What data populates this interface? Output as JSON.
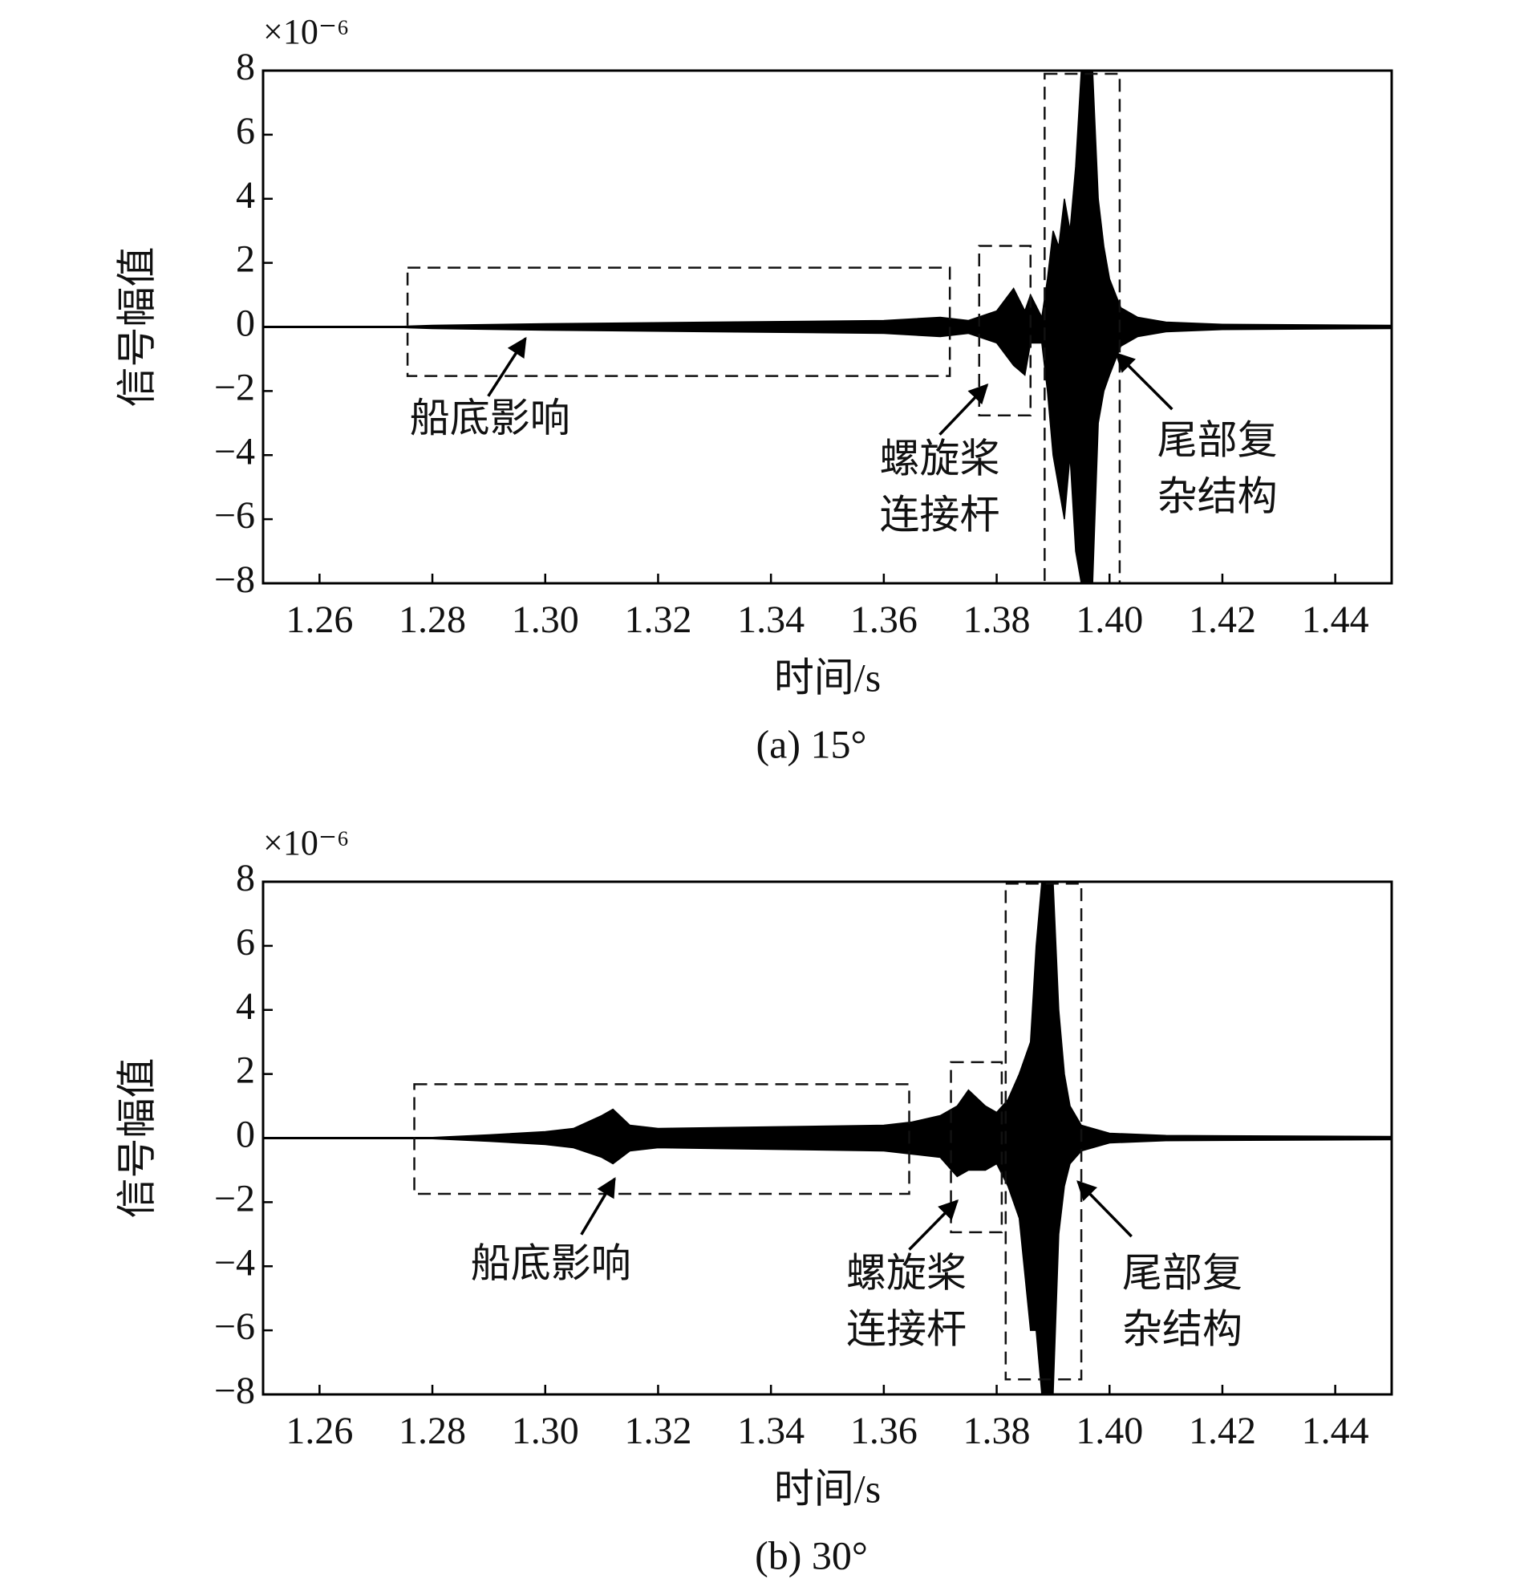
{
  "chart_data": [
    {
      "type": "area",
      "caption": "(a) 15°",
      "x_label": "时间/s",
      "y_label": "信号幅值",
      "y_multiplier": "×10⁻⁶",
      "xlim": [
        1.25,
        1.45
      ],
      "ylim": [
        -8,
        8
      ],
      "xticks": [
        1.26,
        1.28,
        {
          "value": 1.3,
          "label": "1.30"
        },
        1.32,
        1.34,
        1.36,
        1.38,
        {
          "value": 1.4,
          "label": "1.40"
        },
        1.42,
        1.44
      ],
      "yticks": [
        {
          "value": -8,
          "label": "−8"
        },
        {
          "value": -6,
          "label": "−6"
        },
        {
          "value": -4,
          "label": "−4"
        },
        {
          "value": -2,
          "label": "−2"
        },
        0,
        2,
        4,
        6,
        8
      ],
      "x": [
        1.25,
        1.275,
        1.28,
        1.3,
        1.33,
        1.36,
        1.37,
        1.375,
        1.38,
        1.383,
        1.385,
        1.386,
        1.388,
        1.389,
        1.39,
        1.391,
        1.392,
        1.393,
        1.394,
        1.395,
        1.397,
        1.398,
        1.399,
        1.4,
        1.402,
        1.405,
        1.41,
        1.42,
        1.45
      ],
      "series": [
        {
          "color": "#000000",
          "values": [
            0.02,
            0.02,
            0.05,
            0.1,
            0.15,
            0.2,
            0.3,
            0.2,
            0.5,
            1.2,
            0.5,
            1.0,
            0.3,
            1.5,
            3,
            2.5,
            4,
            3,
            5,
            8,
            8,
            4,
            2.5,
            1.5,
            0.6,
            0.3,
            0.15,
            0.08,
            0.05
          ]
        },
        {
          "color": "#000000",
          "values": [
            -0.02,
            -0.02,
            -0.05,
            -0.1,
            -0.15,
            -0.2,
            -0.3,
            -0.2,
            -0.5,
            -1.2,
            -1.5,
            -0.5,
            -0.5,
            -2,
            -4,
            -5,
            -6,
            -4,
            -7,
            -8,
            -8,
            -3,
            -2,
            -1.5,
            -0.6,
            -0.3,
            -0.15,
            -0.08,
            -0.05
          ]
        }
      ],
      "annotations": [
        {
          "text": [
            "船底影响"
          ],
          "box": [
            1.2756,
            1.3717,
            -1.53,
            1.85
          ],
          "arrow": [
            1.2899,
            -2.16,
            1.2965,
            -0.36
          ],
          "at": [
            1.2902,
            -2.98
          ]
        },
        {
          "text": [
            "螺旋桨",
            "连接杆"
          ],
          "box": [
            1.3769,
            1.386,
            -2.76,
            2.53
          ],
          "arrow": [
            1.3699,
            -3.36,
            1.3783,
            -1.81
          ],
          "at": [
            1.3699,
            -4.24
          ]
        },
        {
          "text": [
            "尾部复",
            "杂结构"
          ],
          "box": [
            1.3885,
            1.4018,
            -8,
            7.9
          ],
          "arrow": [
            1.4111,
            -2.57,
            1.4012,
            -0.83
          ],
          "at": [
            1.4191,
            -3.67
          ]
        }
      ]
    },
    {
      "type": "area",
      "caption": "(b) 30°",
      "x_label": "时间/s",
      "y_label": "信号幅值",
      "y_multiplier": "×10⁻⁶",
      "xlim": [
        1.25,
        1.45
      ],
      "ylim": [
        -8,
        8
      ],
      "xticks": [
        1.26,
        1.28,
        {
          "value": 1.3,
          "label": "1.30"
        },
        1.32,
        1.34,
        1.36,
        1.38,
        {
          "value": 1.4,
          "label": "1.40"
        },
        1.42,
        1.44
      ],
      "yticks": [
        {
          "value": -8,
          "label": "−8"
        },
        {
          "value": -6,
          "label": "−6"
        },
        {
          "value": -4,
          "label": "−4"
        },
        {
          "value": -2,
          "label": "−2"
        },
        0,
        2,
        4,
        6,
        8
      ],
      "x": [
        1.25,
        1.28,
        1.29,
        1.3,
        1.305,
        1.31,
        1.312,
        1.315,
        1.32,
        1.34,
        1.36,
        1.365,
        1.37,
        1.373,
        1.375,
        1.378,
        1.38,
        1.382,
        1.384,
        1.386,
        1.387,
        1.388,
        1.39,
        1.391,
        1.392,
        1.393,
        1.395,
        1.4,
        1.41,
        1.45
      ],
      "series": [
        {
          "color": "#000000",
          "values": [
            0.02,
            0.02,
            0.1,
            0.2,
            0.3,
            0.7,
            0.9,
            0.4,
            0.3,
            0.35,
            0.4,
            0.5,
            0.7,
            1.0,
            1.5,
            1.0,
            0.8,
            1.2,
            2,
            3,
            6,
            8,
            8,
            4,
            2,
            1,
            0.4,
            0.15,
            0.08,
            0.05
          ]
        },
        {
          "color": "#000000",
          "values": [
            -0.02,
            -0.02,
            -0.1,
            -0.2,
            -0.3,
            -0.6,
            -0.8,
            -0.4,
            -0.3,
            -0.35,
            -0.4,
            -0.5,
            -0.6,
            -1.2,
            -1,
            -1.0,
            -0.8,
            -1.5,
            -2.5,
            -6,
            -6,
            -8,
            -8,
            -3,
            -1.5,
            -0.8,
            -0.4,
            -0.15,
            -0.08,
            -0.05
          ]
        }
      ],
      "annotations": [
        {
          "text": [
            "船底影响"
          ],
          "box": [
            1.2768,
            1.3645,
            -1.74,
            1.68
          ],
          "arrow": [
            1.3064,
            -3.01,
            1.3123,
            -1.27
          ],
          "at": [
            1.301,
            -4.05
          ]
        },
        {
          "text": [
            "螺旋桨",
            "连接杆"
          ],
          "box": [
            1.3719,
            1.3809,
            -2.94,
            2.37
          ],
          "arrow": [
            1.3645,
            -3.48,
            1.373,
            -1.96
          ],
          "at": [
            1.364,
            -4.34
          ]
        },
        {
          "text": [
            "尾部复",
            "杂结构"
          ],
          "box": [
            1.3816,
            1.395,
            -7.53,
            7.94
          ],
          "arrow": [
            1.4039,
            -3.07,
            1.3944,
            -1.36
          ],
          "at": [
            1.4129,
            -4.34
          ]
        }
      ]
    }
  ]
}
